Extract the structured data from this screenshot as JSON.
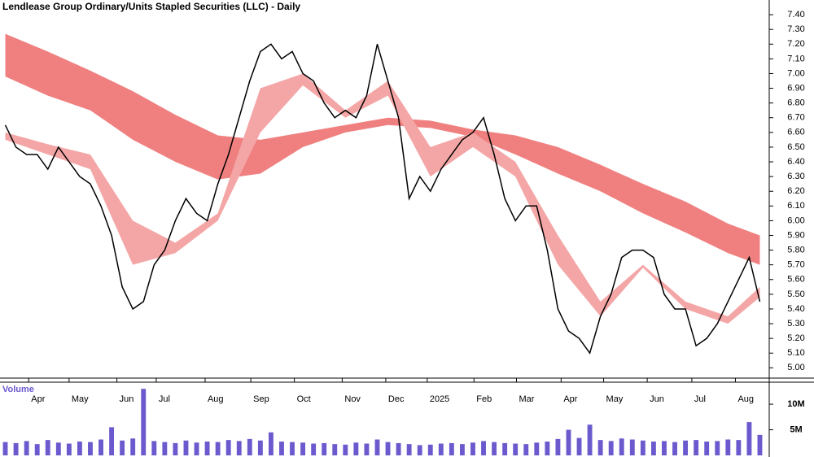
{
  "chart_data": [
    {
      "type": "line",
      "title": "Lendlease Group Ordinary/Units Stapled Securities (LLC) - Daily",
      "color": "#000000",
      "values": [
        6.65,
        6.5,
        6.45,
        6.45,
        6.35,
        6.5,
        6.4,
        6.3,
        6.25,
        6.1,
        5.9,
        5.55,
        5.4,
        5.45,
        5.7,
        5.8,
        6.0,
        6.15,
        6.05,
        6.0,
        6.25,
        6.45,
        6.7,
        6.95,
        7.15,
        7.2,
        7.1,
        7.15,
        7.0,
        6.95,
        6.8,
        6.7,
        6.75,
        6.7,
        6.85,
        7.2,
        6.95,
        6.7,
        6.15,
        6.3,
        6.2,
        6.35,
        6.45,
        6.55,
        6.6,
        6.7,
        6.45,
        6.15,
        6.0,
        6.1,
        6.1,
        5.8,
        5.4,
        5.25,
        5.2,
        5.1,
        5.35,
        5.5,
        5.75,
        5.8,
        5.8,
        5.75,
        5.5,
        5.4,
        5.4,
        5.15,
        5.2,
        5.3,
        5.45,
        5.6,
        5.75,
        5.45
      ],
      "bands": [
        {
          "color": "#f08080",
          "x": [
            0,
            4,
            8,
            12,
            16,
            20,
            24,
            28,
            32,
            36,
            40,
            44,
            48,
            52,
            56,
            60,
            64,
            68,
            71
          ],
          "upper": [
            7.27,
            7.15,
            7.02,
            6.88,
            6.72,
            6.58,
            6.55,
            6.6,
            6.65,
            6.7,
            6.68,
            6.62,
            6.58,
            6.5,
            6.38,
            6.25,
            6.13,
            5.98,
            5.9
          ],
          "lower": [
            6.98,
            6.85,
            6.75,
            6.55,
            6.4,
            6.28,
            6.32,
            6.5,
            6.6,
            6.65,
            6.63,
            6.57,
            6.45,
            6.32,
            6.2,
            6.05,
            5.92,
            5.78,
            5.7
          ]
        },
        {
          "color": "#f4a6a6",
          "x": [
            0,
            4,
            8,
            12,
            16,
            20,
            24,
            28,
            32,
            36,
            40,
            44,
            48,
            52,
            56,
            60,
            64,
            68,
            71
          ],
          "upper": [
            6.6,
            6.52,
            6.45,
            6.0,
            5.85,
            6.05,
            6.9,
            7.0,
            6.75,
            6.95,
            6.5,
            6.6,
            6.4,
            5.9,
            5.45,
            5.7,
            5.45,
            5.35,
            5.55
          ],
          "lower": [
            6.55,
            6.45,
            6.35,
            5.7,
            5.78,
            6.0,
            6.6,
            6.92,
            6.7,
            6.85,
            6.3,
            6.5,
            6.3,
            5.7,
            5.35,
            5.68,
            5.4,
            5.3,
            5.48
          ]
        }
      ],
      "xlim": [
        -0.5,
        71.5
      ],
      "xticks": [
        {
          "value": 2.2,
          "label": "Apr"
        },
        {
          "value": 6,
          "label": "May"
        },
        {
          "value": 10.5,
          "label": "Jun"
        },
        {
          "value": 14.2,
          "label": "Jul"
        },
        {
          "value": 18.8,
          "label": "Aug"
        },
        {
          "value": 23.1,
          "label": "Sep"
        },
        {
          "value": 27.2,
          "label": "Oct"
        },
        {
          "value": 31.7,
          "label": "Nov"
        },
        {
          "value": 35.8,
          "label": "Dec"
        },
        {
          "value": 39.7,
          "label": "2025"
        },
        {
          "value": 44.1,
          "label": "Feb"
        },
        {
          "value": 48.1,
          "label": "Mar"
        },
        {
          "value": 52.3,
          "label": "Apr"
        },
        {
          "value": 56.3,
          "label": "May"
        },
        {
          "value": 60.4,
          "label": "Jun"
        },
        {
          "value": 64.6,
          "label": "Jul"
        },
        {
          "value": 68.7,
          "label": "Aug"
        }
      ],
      "ylim": [
        4.93,
        7.5
      ],
      "yticks": [
        {
          "value": 5.0,
          "label": "5.00"
        },
        {
          "value": 5.1,
          "label": "5.10"
        },
        {
          "value": 5.2,
          "label": "5.20"
        },
        {
          "value": 5.3,
          "label": "5.30"
        },
        {
          "value": 5.4,
          "label": "5.40"
        },
        {
          "value": 5.5,
          "label": "5.50"
        },
        {
          "value": 5.6,
          "label": "5.60"
        },
        {
          "value": 5.7,
          "label": "5.70"
        },
        {
          "value": 5.8,
          "label": "5.80"
        },
        {
          "value": 5.9,
          "label": "5.90"
        },
        {
          "value": 6.0,
          "label": "6.00"
        },
        {
          "value": 6.1,
          "label": "6.10"
        },
        {
          "value": 6.2,
          "label": "6.20"
        },
        {
          "value": 6.3,
          "label": "6.30"
        },
        {
          "value": 6.4,
          "label": "6.40"
        },
        {
          "value": 6.5,
          "label": "6.50"
        },
        {
          "value": 6.6,
          "label": "6.60"
        },
        {
          "value": 6.7,
          "label": "6.70"
        },
        {
          "value": 6.8,
          "label": "6.80"
        },
        {
          "value": 6.9,
          "label": "6.90"
        },
        {
          "value": 7.0,
          "label": "7.00"
        },
        {
          "value": 7.1,
          "label": "7.10"
        },
        {
          "value": 7.2,
          "label": "7.20"
        },
        {
          "value": 7.3,
          "label": "7.30"
        },
        {
          "value": 7.4,
          "label": "7.40"
        }
      ]
    },
    {
      "type": "bar",
      "title": "Volume",
      "color": "#6a5acd",
      "values": [
        2600000,
        2400000,
        2800000,
        2200000,
        3000000,
        2500000,
        2300000,
        2700000,
        2600000,
        3100000,
        5500000,
        2900000,
        3300000,
        13000000,
        2800000,
        2600000,
        2400000,
        2900000,
        2500000,
        2700000,
        2600000,
        3000000,
        2800000,
        3200000,
        2900000,
        4500000,
        2700000,
        2600000,
        2500000,
        2300000,
        2400000,
        2200000,
        2100000,
        2500000,
        2300000,
        3100000,
        2600000,
        2400000,
        2200000,
        2000000,
        2100000,
        2300000,
        2400000,
        2200000,
        2500000,
        2800000,
        2600000,
        2400000,
        2300000,
        2200000,
        2500000,
        2700000,
        3200000,
        5000000,
        3400000,
        6000000,
        3000000,
        2800000,
        3300000,
        3100000,
        2900000,
        2700000,
        2800000,
        2600000,
        2900000,
        3000000,
        2700000,
        2800000,
        3100000,
        3000000,
        6500000,
        4000000
      ],
      "ylim": [
        0,
        14300000
      ],
      "yticks": [
        {
          "value": 5000000,
          "label": "5M"
        },
        {
          "value": 10000000,
          "label": "10M"
        }
      ]
    }
  ]
}
